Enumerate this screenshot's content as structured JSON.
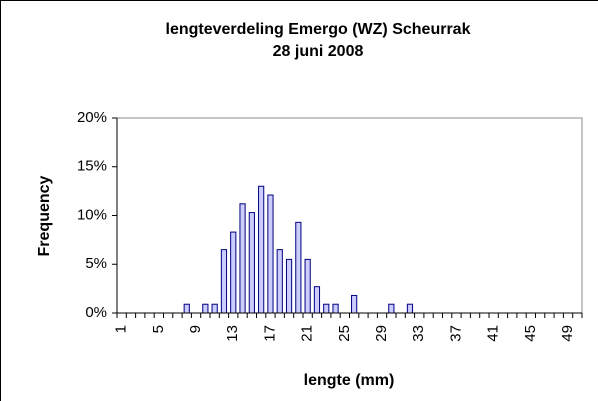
{
  "chart_data": {
    "type": "bar",
    "title": [
      "lengteverdeling Emergo (WZ) Scheurrak",
      "28 juni 2008"
    ],
    "x_label": "lengte (mm)",
    "y_label": "Frequency",
    "categories": [
      "1",
      null,
      null,
      null,
      "5",
      null,
      null,
      null,
      "9",
      null,
      null,
      null,
      "13",
      null,
      null,
      null,
      "17",
      null,
      null,
      null,
      "21",
      null,
      null,
      null,
      "25",
      null,
      null,
      null,
      "29",
      null,
      null,
      null,
      "33",
      null,
      null,
      null,
      "37",
      null,
      null,
      null,
      "41",
      null,
      null,
      null,
      "45",
      null,
      null,
      null,
      "49",
      null
    ],
    "values": [
      0,
      0,
      0,
      0,
      0,
      0,
      0,
      0.9,
      0,
      0.9,
      0.9,
      6.5,
      8.3,
      11.2,
      10.3,
      13,
      12.1,
      6.5,
      5.5,
      9.3,
      5.5,
      2.7,
      0.9,
      0.9,
      0,
      1.8,
      0,
      0,
      0,
      0.9,
      0,
      0.9,
      0,
      0,
      0,
      0,
      0,
      0,
      0,
      0,
      0,
      0,
      0,
      0,
      0,
      0,
      0,
      0,
      0,
      0
    ],
    "color": "#ccccff",
    "ylim": [
      0,
      20
    ],
    "yticks": [
      {
        "value": 0,
        "label": "0%"
      },
      {
        "value": 5,
        "label": "5%"
      },
      {
        "value": 10,
        "label": "10%"
      },
      {
        "value": 15,
        "label": "15%"
      },
      {
        "value": 20,
        "label": "20%"
      }
    ]
  }
}
